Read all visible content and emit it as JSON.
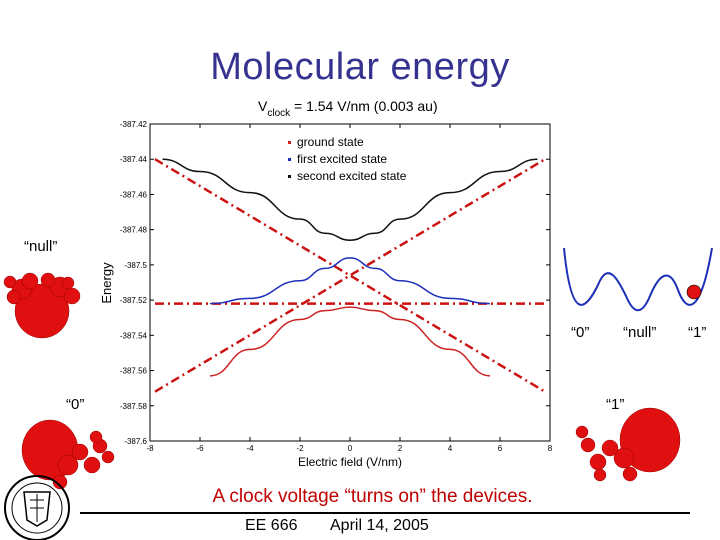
{
  "slide": {
    "title": "Molecular energy",
    "caption": "A clock voltage “turns on” the devices.",
    "footer_course": "EE 666",
    "footer_date": "April 14, 2005"
  },
  "labels": {
    "null_left": "“null”",
    "zero_left": "“0”",
    "zero_well": "“0”",
    "null_well": "“null”",
    "one_well": "“1”",
    "one_right": "“1”"
  },
  "colors": {
    "title": "#35338f",
    "ground": "#cc2222",
    "first": "#1c2fb8",
    "second": "#111111",
    "dashed": "#cc1111",
    "molecule": "#e01010"
  },
  "chart_data": {
    "type": "line",
    "title_main": "V",
    "title_sub": "clock",
    "title_rest": " = 1.54 V/nm (0.003 au)",
    "xlabel": "Electric field (V/nm)",
    "ylabel": "Energy",
    "xlim": [
      -8,
      8
    ],
    "ylim": [
      -387.6,
      -387.42
    ],
    "xticks": [
      "-8",
      "-6",
      "-4",
      "-2",
      "0",
      "2",
      "4",
      "6",
      "8"
    ],
    "yticks": [
      "-387.42",
      "-387.44",
      "-387.46",
      "-387.48",
      "-387.5",
      "-387.52",
      "-387.54",
      "-387.56",
      "-387.58",
      "-387.6"
    ],
    "legend": [
      "ground state",
      "first excited state",
      "second excited state"
    ],
    "legend_colors": [
      "#cc2222",
      "#1c2fb8",
      "#111111"
    ],
    "series": [
      {
        "name": "ground state",
        "x": [
          -5.6,
          -4,
          -2,
          -1,
          0,
          1,
          2,
          4,
          5.6
        ],
        "y": [
          -387.563,
          -387.548,
          -387.531,
          -387.526,
          -387.524,
          -387.526,
          -387.531,
          -387.548,
          -387.563
        ]
      },
      {
        "name": "first excited state",
        "x": [
          -5.6,
          -4,
          -2,
          -1,
          0,
          1,
          2,
          4,
          5.6
        ],
        "y": [
          -387.522,
          -387.519,
          -387.509,
          -387.502,
          -387.496,
          -387.502,
          -387.509,
          -387.519,
          -387.522
        ]
      },
      {
        "name": "second excited state",
        "x": [
          -7.5,
          -6,
          -4,
          -2,
          -1,
          0,
          1,
          2,
          4,
          6,
          7.5
        ],
        "y": [
          -387.44,
          -387.447,
          -387.459,
          -387.474,
          -387.482,
          -387.486,
          -387.482,
          -387.474,
          -387.459,
          -387.447,
          -387.44
        ]
      }
    ],
    "dashed_lines": [
      {
        "x": [
          -7.8,
          7.8
        ],
        "y": [
          -387.44,
          -387.572
        ]
      },
      {
        "x": [
          -7.8,
          7.8
        ],
        "y": [
          -387.572,
          -387.44
        ]
      },
      {
        "x": [
          -7.8,
          7.8
        ],
        "y": [
          -387.522,
          -387.522
        ]
      }
    ]
  }
}
